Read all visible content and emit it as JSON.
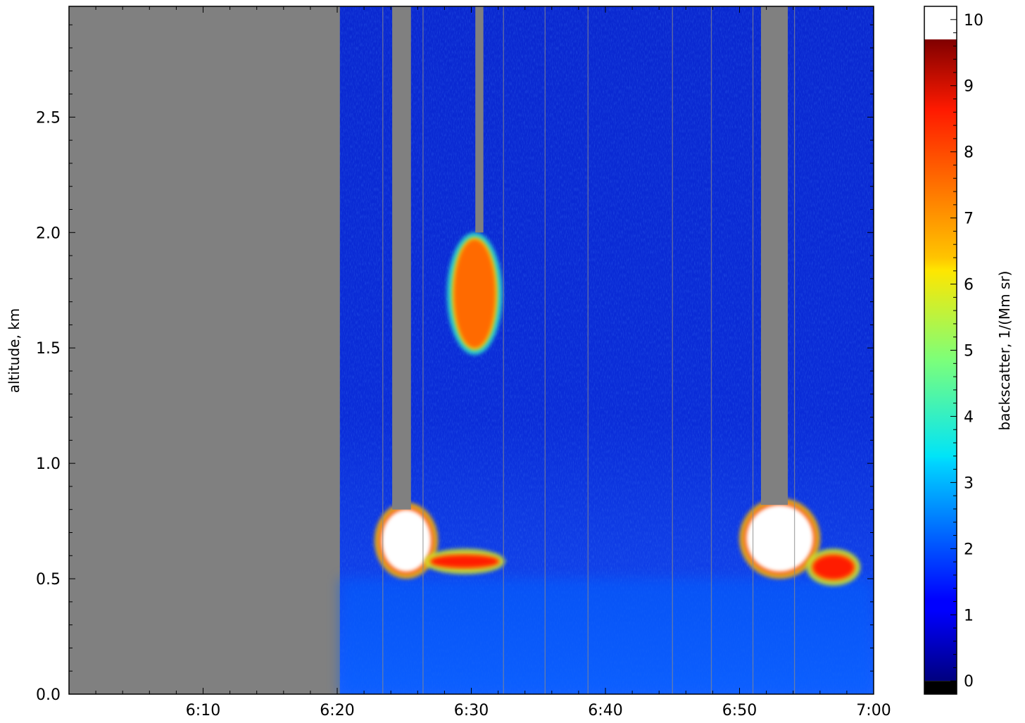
{
  "chart_data": {
    "type": "heatmap",
    "title": "",
    "xlabel": "",
    "ylabel": "altitude, km",
    "x_ticks": [
      "6:10",
      "6:20",
      "6:30",
      "6:40",
      "6:50",
      "7:00"
    ],
    "x_tick_values_min": [
      10,
      20,
      30,
      40,
      50,
      60
    ],
    "x_range_min": [
      0,
      60
    ],
    "y_ticks": [
      "0.0",
      "0.5",
      "1.0",
      "1.5",
      "2.0",
      "2.5"
    ],
    "y_tick_values": [
      0,
      0.5,
      1.0,
      1.5,
      2.0,
      2.5
    ],
    "ylim": [
      0,
      2.98
    ],
    "colorbar": {
      "label": "backscatter, 1/(Mm sr)",
      "ticks": [
        "0",
        "1",
        "2",
        "3",
        "4",
        "5",
        "6",
        "7",
        "8",
        "9",
        "10"
      ],
      "range": [
        -0.2,
        10.2
      ],
      "colormap": "jet",
      "under_color": "#000000",
      "over_color": "#ffffff"
    },
    "no_data_color": "#808080",
    "no_data_until_min": 20.2,
    "regions": [
      {
        "feature": "no data",
        "x_min": [
          0,
          20.2
        ],
        "y_km": [
          0,
          2.98
        ]
      },
      {
        "feature": "background",
        "x_min": [
          20.2,
          60
        ],
        "y_km": [
          0,
          2.98
        ],
        "backscatter": 1.0
      },
      {
        "feature": "boundary layer",
        "x_min": [
          20.2,
          60
        ],
        "y_km": [
          0,
          0.5
        ],
        "backscatter": 2.0
      },
      {
        "feature": "cloud",
        "x_min": [
          23.3,
          27
        ],
        "y_km": [
          0.53,
          0.8
        ],
        "backscatter": 10
      },
      {
        "feature": "cloud",
        "x_min": [
          27,
          32
        ],
        "y_km": [
          0.55,
          0.6
        ],
        "backscatter": 9
      },
      {
        "feature": "cloud",
        "x_min": [
          28.7,
          31.8
        ],
        "y_km": [
          1.5,
          1.97
        ],
        "backscatter": 8
      },
      {
        "feature": "cloud",
        "x_min": [
          50.5,
          55.5
        ],
        "y_km": [
          0.53,
          0.82
        ],
        "backscatter": 10
      },
      {
        "feature": "cloud",
        "x_min": [
          55.5,
          58.5
        ],
        "y_km": [
          0.5,
          0.6
        ],
        "backscatter": 9
      },
      {
        "feature": "no data (above cloud)",
        "x_min": [
          24.1,
          25.5
        ],
        "y_km": [
          0.8,
          2.98
        ]
      },
      {
        "feature": "no data (above cloud)",
        "x_min": [
          30.3,
          30.9
        ],
        "y_km": [
          2.0,
          2.98
        ]
      },
      {
        "feature": "no data (above cloud)",
        "x_min": [
          51.6,
          53.6
        ],
        "y_km": [
          0.82,
          2.98
        ]
      }
    ]
  }
}
